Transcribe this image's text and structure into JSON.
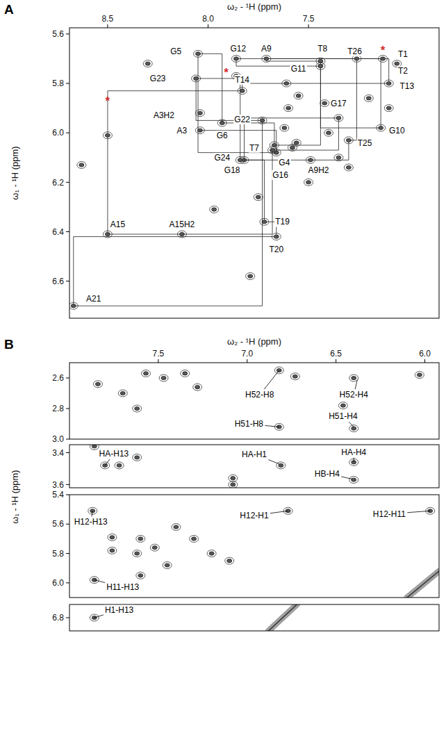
{
  "chart_data": [
    {
      "type": "contour",
      "title": "A",
      "x_label": "ω₂ - ¹H (ppm)",
      "y_label": "ω₁ - ¹H (ppm)",
      "xlim": [
        8.69,
        6.85
      ],
      "ylim": [
        5.575,
        6.75
      ],
      "xticks": [
        8.5,
        {
          "value": 8,
          "label": "8.0"
        },
        7.5
      ],
      "yticks": [
        5.6,
        5.8,
        {
          "value": 6,
          "label": "6.0"
        },
        6.2,
        6.4,
        6.6
      ],
      "x": [
        8.04,
        7.49,
        8.13,
        8.5,
        7.86,
        7.13,
        7.06,
        7.6,
        7.55,
        7.4,
        7.35,
        7.5,
        7.97,
        8.3,
        7.75,
        7.3,
        7.42,
        7.62,
        7.2,
        7.56,
        7.61,
        8.63,
        7.79,
        7.1,
        7.58
      ],
      "values": [
        5.92,
        6.11,
        6.41,
        6.01,
        5.77,
        5.7,
        5.72,
        5.9,
        5.85,
        6.0,
        6.1,
        6.2,
        6.31,
        5.72,
        6.26,
        6.14,
        5.88,
        5.98,
        5.86,
        6.04,
        5.8,
        6.13,
        6.58,
        5.9,
        6.06
      ],
      "series": [
        {
          "type": "line",
          "line_style": "step",
          "marker": "peak",
          "x": [
            8.04,
            7.66,
            8.05,
            7.93,
            7.67,
            7.44,
            7.71,
            7.14,
            7.44,
            7.86,
            7.1,
            7.83,
            8.5,
            7.68,
            7.35,
            7.82,
            7.72,
            7.66,
            8.67,
            7.73,
            8.06,
            7.84,
            7.3,
            7.26
          ],
          "values": [
            5.99,
            6.08,
            5.68,
            5.96,
            6.05,
            5.71,
            5.7,
            5.98,
            5.73,
            5.7,
            5.8,
            5.83,
            6.41,
            6.07,
            5.94,
            6.11,
            6.36,
            6.42,
            6.7,
            5.95,
            5.78,
            6.11,
            6.03,
            5.7
          ]
        }
      ],
      "annotations": [
        {
          "text": "G5",
          "x": 8.16,
          "y": 5.67
        },
        {
          "text": "G12",
          "x": 7.85,
          "y": 5.66
        },
        {
          "text": "A9",
          "x": 7.71,
          "y": 5.66
        },
        {
          "text": "T8",
          "x": 7.43,
          "y": 5.66
        },
        {
          "text": "T26",
          "x": 7.27,
          "y": 5.67
        },
        {
          "text": "*",
          "x": 7.13,
          "y": 5.665,
          "color": "#d42a2a"
        },
        {
          "text": "T1",
          "x": 7.03,
          "y": 5.68
        },
        {
          "text": "G11",
          "x": 7.55,
          "y": 5.74
        },
        {
          "text": "T2",
          "x": 7.03,
          "y": 5.75
        },
        {
          "text": "*",
          "x": 7.91,
          "y": 5.755,
          "color": "#d42a2a"
        },
        {
          "text": "G23",
          "x": 8.25,
          "y": 5.78
        },
        {
          "text": "T14",
          "x": 7.83,
          "y": 5.785
        },
        {
          "text": "T13",
          "x": 7.01,
          "y": 5.81
        },
        {
          "text": "*",
          "x": 8.5,
          "y": 5.87,
          "color": "#d42a2a"
        },
        {
          "text": "G17",
          "x": 7.35,
          "y": 5.88
        },
        {
          "text": "A3H2",
          "x": 8.22,
          "y": 5.93
        },
        {
          "text": "G22",
          "x": 7.83,
          "y": 5.945
        },
        {
          "text": "A3",
          "x": 8.13,
          "y": 5.99
        },
        {
          "text": "G6",
          "x": 7.93,
          "y": 6.01
        },
        {
          "text": "G10",
          "x": 7.06,
          "y": 5.99
        },
        {
          "text": "T25",
          "x": 7.22,
          "y": 6.04
        },
        {
          "text": "T7",
          "x": 7.77,
          "y": 6.06
        },
        {
          "text": "G24",
          "x": 7.93,
          "y": 6.1
        },
        {
          "text": "G4",
          "x": 7.62,
          "y": 6.12
        },
        {
          "text": "G18",
          "x": 7.88,
          "y": 6.15
        },
        {
          "text": "A9H2",
          "x": 7.45,
          "y": 6.15
        },
        {
          "text": "G16",
          "x": 7.64,
          "y": 6.17
        },
        {
          "text": "A15",
          "x": 8.45,
          "y": 6.37
        },
        {
          "text": "A15H2",
          "x": 8.13,
          "y": 6.37
        },
        {
          "text": "T19",
          "x": 7.63,
          "y": 6.36
        },
        {
          "text": "T20",
          "x": 7.66,
          "y": 6.47
        },
        {
          "text": "A21",
          "x": 8.57,
          "y": 6.67
        }
      ]
    },
    {
      "type": "contour",
      "title": "B",
      "x_label": "ω₂ - ¹H (ppm)",
      "y_label": "ω₁ - ¹H (ppm)",
      "xlim": [
        8.0,
        5.92
      ],
      "ylim": [
        2.5,
        3.0
      ],
      "xticks": [
        7.5,
        {
          "value": 7,
          "label": "7.0"
        },
        6.5,
        {
          "value": 6,
          "label": "6.0"
        }
      ],
      "yticks": [
        2.6,
        2.8,
        {
          "value": 3,
          "label": "3.0"
        }
      ],
      "x": [
        6.82,
        6.82,
        6.73,
        6.4,
        6.46,
        6.4,
        7.57,
        7.47,
        7.35,
        7.84,
        7.7,
        6.03,
        7.62,
        7.28
      ],
      "values": [
        2.55,
        2.92,
        2.59,
        2.6,
        2.78,
        2.93,
        2.57,
        2.6,
        2.57,
        2.64,
        2.7,
        2.58,
        2.8,
        2.66
      ],
      "annotations": [
        {
          "text": "H52-H8",
          "x": 6.93,
          "y": 2.71,
          "arrow": [
            6.82,
            2.55
          ]
        },
        {
          "text": "H51-H8",
          "x": 6.99,
          "y": 2.9,
          "arrow": [
            6.82,
            2.92
          ]
        },
        {
          "text": "H52-H4",
          "x": 6.4,
          "y": 2.71,
          "arrow": [
            6.38,
            2.61
          ]
        },
        {
          "text": "H51-H4",
          "x": 6.46,
          "y": 2.85,
          "arrow": [
            6.4,
            2.92
          ]
        }
      ]
    },
    {
      "type": "contour",
      "tick_labels": "y",
      "xlim": [
        8.0,
        5.92
      ],
      "ylim": [
        3.35,
        3.62
      ],
      "yticks": [
        3.4,
        3.6
      ],
      "x": [
        7.86,
        7.8,
        7.72,
        6.81,
        6.4,
        6.4,
        7.08,
        7.08,
        7.62
      ],
      "values": [
        3.36,
        3.48,
        3.48,
        3.48,
        3.46,
        3.57,
        3.56,
        3.6,
        3.43
      ],
      "annotations": [
        {
          "text": "HA-H13",
          "x": 7.75,
          "y": 3.405,
          "arrow": [
            7.8,
            3.48
          ]
        },
        {
          "text": "HA-H1",
          "x": 6.96,
          "y": 3.41,
          "arrow": [
            6.82,
            3.47
          ]
        },
        {
          "text": "HA-H4",
          "x": 6.4,
          "y": 3.395,
          "arrow": [
            6.4,
            3.46
          ]
        },
        {
          "text": "HB-H4",
          "x": 6.55,
          "y": 3.53,
          "arrow": [
            6.41,
            3.565
          ]
        }
      ]
    },
    {
      "type": "contour",
      "tick_labels": "y",
      "xlim": [
        8.0,
        5.92
      ],
      "ylim": [
        5.4,
        6.1
      ],
      "yticks": [
        5.4,
        5.6,
        5.8,
        {
          "value": 6,
          "label": "6.0"
        }
      ],
      "x": [
        7.87,
        7.76,
        7.76,
        7.6,
        7.62,
        7.6,
        7.45,
        7.3,
        7.2,
        7.1,
        6.77,
        5.97,
        7.86,
        7.4,
        7.52
      ],
      "values": [
        5.51,
        5.69,
        5.78,
        5.7,
        5.8,
        5.95,
        5.88,
        5.7,
        5.8,
        5.85,
        5.51,
        5.51,
        5.98,
        5.62,
        5.76
      ],
      "annotations": [
        {
          "text": "H12-H13",
          "x": 7.88,
          "y": 5.585,
          "arrow": [
            7.87,
            5.51
          ]
        },
        {
          "text": "H12-H1",
          "x": 6.96,
          "y": 5.54,
          "arrow": [
            6.77,
            5.51
          ]
        },
        {
          "text": "H12-H11",
          "x": 6.2,
          "y": 5.53,
          "arrow": [
            5.97,
            5.51
          ]
        },
        {
          "text": "H11-H13",
          "x": 7.7,
          "y": 6.03,
          "arrow": [
            7.86,
            5.98
          ]
        }
      ]
    },
    {
      "type": "contour",
      "tick_labels": "y",
      "xlim": [
        8.0,
        5.92
      ],
      "ylim": [
        6.72,
        6.88
      ],
      "yticks": [
        6.8
      ],
      "x": [
        7.86
      ],
      "values": [
        6.8
      ],
      "annotations": [
        {
          "text": "H1-H13",
          "x": 7.72,
          "y": 6.752,
          "arrow": [
            7.86,
            6.8
          ]
        }
      ]
    }
  ]
}
